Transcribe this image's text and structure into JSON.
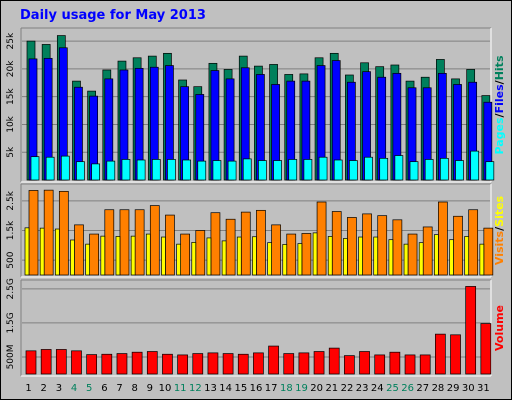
{
  "title": "Daily usage for May 2013",
  "colors": {
    "hits": "#00805c",
    "files": "#0000ff",
    "pages": "#00ffff",
    "visits": "#ff8000",
    "sites": "#ffff00",
    "volume": "#ff0000",
    "weekend": "#00805c",
    "weekday": "#000000",
    "plot_bg": "#c0c0c0"
  },
  "chart_data": [
    {
      "type": "bar",
      "categories": [
        "1",
        "2",
        "3",
        "4",
        "5",
        "6",
        "7",
        "8",
        "9",
        "10",
        "11",
        "12",
        "13",
        "14",
        "15",
        "16",
        "17",
        "18",
        "19",
        "20",
        "21",
        "22",
        "23",
        "24",
        "25",
        "26",
        "27",
        "28",
        "29",
        "30",
        "31"
      ],
      "weekend_days": [
        "4",
        "5",
        "11",
        "12",
        "18",
        "19",
        "25",
        "26"
      ],
      "y_ticks": [
        "5k",
        "10k",
        "15k",
        "20k",
        "25k"
      ],
      "y_tick_values": [
        5000,
        10000,
        15000,
        20000,
        25000
      ],
      "ylim": [
        0,
        27000
      ],
      "ylabel_parts": [
        {
          "text": "Pages",
          "color": "#00ffff"
        },
        {
          "text": "/",
          "color": "#000000"
        },
        {
          "text": "Files",
          "color": "#0000ff"
        },
        {
          "text": "/",
          "color": "#000000"
        },
        {
          "text": "Hits",
          "color": "#00805c"
        }
      ],
      "series": [
        {
          "name": "Hits",
          "color": "#00805c",
          "values": [
            25000,
            24400,
            26000,
            17800,
            16000,
            19800,
            21400,
            22000,
            22300,
            22800,
            18000,
            16800,
            21000,
            19900,
            22300,
            20500,
            20800,
            19000,
            19100,
            22000,
            22800,
            18900,
            21100,
            20400,
            20700,
            17800,
            18500,
            21700,
            18200,
            19900,
            15200
          ]
        },
        {
          "name": "Files",
          "color": "#0000ff",
          "values": [
            21800,
            21900,
            23800,
            16700,
            15100,
            18200,
            19800,
            20100,
            20300,
            20600,
            16800,
            15400,
            19700,
            18200,
            20200,
            19000,
            17200,
            17800,
            17800,
            20600,
            21500,
            17600,
            19500,
            18500,
            19200,
            16600,
            16600,
            19200,
            17200,
            17600,
            14000
          ]
        },
        {
          "name": "Pages",
          "color": "#00ffff",
          "values": [
            4200,
            4100,
            4300,
            3300,
            2900,
            3400,
            3700,
            3600,
            3700,
            3700,
            3600,
            3400,
            3500,
            3400,
            3800,
            3500,
            3500,
            3700,
            3700,
            4100,
            3600,
            3500,
            4100,
            3900,
            4400,
            3300,
            3700,
            3900,
            3500,
            5200,
            3300
          ]
        }
      ]
    },
    {
      "type": "bar",
      "categories": [
        "1",
        "2",
        "3",
        "4",
        "5",
        "6",
        "7",
        "8",
        "9",
        "10",
        "11",
        "12",
        "13",
        "14",
        "15",
        "16",
        "17",
        "18",
        "19",
        "20",
        "21",
        "22",
        "23",
        "24",
        "25",
        "26",
        "27",
        "28",
        "29",
        "30",
        "31"
      ],
      "y_ticks": [
        "500",
        "1.5k",
        "2.5k"
      ],
      "y_tick_values": [
        500,
        1500,
        2500
      ],
      "ylim": [
        0,
        3000
      ],
      "ylabel_parts": [
        {
          "text": "Visits",
          "color": "#ff8000"
        },
        {
          "text": "/",
          "color": "#000000"
        },
        {
          "text": "Sites",
          "color": "#ffff00"
        }
      ],
      "series": [
        {
          "name": "Visits",
          "color": "#ff8000",
          "values": [
            2850,
            2860,
            2820,
            1690,
            1380,
            2200,
            2200,
            2200,
            2340,
            2020,
            1380,
            1500,
            2100,
            1880,
            2120,
            2180,
            1690,
            1380,
            1400,
            2460,
            2140,
            1940,
            2060,
            2000,
            1860,
            1380,
            1620,
            2460,
            1980,
            2200,
            1580
          ]
        },
        {
          "name": "Sites",
          "color": "#ffff00",
          "values": [
            1590,
            1580,
            1550,
            1180,
            1040,
            1310,
            1300,
            1310,
            1380,
            1280,
            1040,
            1100,
            1250,
            1150,
            1280,
            1290,
            1090,
            1030,
            1060,
            1420,
            1300,
            1230,
            1280,
            1280,
            1190,
            1040,
            1090,
            1360,
            1190,
            1300,
            1040
          ]
        }
      ]
    },
    {
      "type": "bar",
      "categories": [
        "1",
        "2",
        "3",
        "4",
        "5",
        "6",
        "7",
        "8",
        "9",
        "10",
        "11",
        "12",
        "13",
        "14",
        "15",
        "16",
        "17",
        "18",
        "19",
        "20",
        "21",
        "22",
        "23",
        "24",
        "25",
        "26",
        "27",
        "28",
        "29",
        "30",
        "31"
      ],
      "y_ticks": [
        "500M",
        "1.5G",
        "2.5G"
      ],
      "y_tick_values": [
        500,
        1500,
        2500
      ],
      "ylim": [
        0,
        2700
      ],
      "ylabel_parts": [
        {
          "text": "Volume",
          "color": "#ff0000"
        }
      ],
      "series": [
        {
          "name": "Volume",
          "color": "#ff0000",
          "values": [
            680,
            720,
            720,
            680,
            570,
            580,
            600,
            640,
            660,
            580,
            560,
            600,
            620,
            600,
            580,
            620,
            820,
            600,
            620,
            660,
            760,
            540,
            660,
            560,
            640,
            560,
            560,
            1170,
            1150,
            2570,
            1480
          ]
        }
      ]
    }
  ]
}
